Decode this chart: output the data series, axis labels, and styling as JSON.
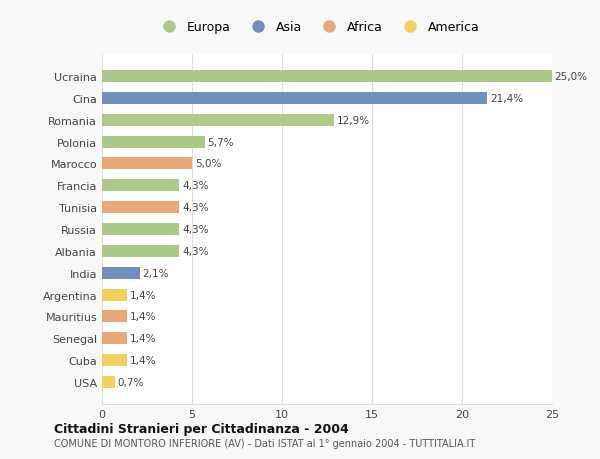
{
  "countries": [
    "Ucraina",
    "Cina",
    "Romania",
    "Polonia",
    "Marocco",
    "Francia",
    "Tunisia",
    "Russia",
    "Albania",
    "India",
    "Argentina",
    "Mauritius",
    "Senegal",
    "Cuba",
    "USA"
  ],
  "values": [
    25.0,
    21.4,
    12.9,
    5.7,
    5.0,
    4.3,
    4.3,
    4.3,
    4.3,
    2.1,
    1.4,
    1.4,
    1.4,
    1.4,
    0.7
  ],
  "labels": [
    "25,0%",
    "21,4%",
    "12,9%",
    "5,7%",
    "5,0%",
    "4,3%",
    "4,3%",
    "4,3%",
    "4,3%",
    "2,1%",
    "1,4%",
    "1,4%",
    "1,4%",
    "1,4%",
    "0,7%"
  ],
  "continents": [
    "Europa",
    "Asia",
    "Europa",
    "Europa",
    "Africa",
    "Europa",
    "Africa",
    "Europa",
    "Europa",
    "Asia",
    "America",
    "Africa",
    "Africa",
    "America",
    "America"
  ],
  "colors": {
    "Europa": "#adc98a",
    "Asia": "#7090bb",
    "Africa": "#e8a87a",
    "America": "#f0d060"
  },
  "title1": "Cittadini Stranieri per Cittadinanza - 2004",
  "title2": "COMUNE DI MONTORO INFERIORE (AV) - Dati ISTAT al 1° gennaio 2004 - TUTTITALIA.IT",
  "xlim": [
    0,
    25
  ],
  "xticks": [
    0,
    5,
    10,
    15,
    20,
    25
  ],
  "background_color": "#ffffff",
  "outer_background": "#f8f8f8",
  "grid_color": "#dddddd"
}
